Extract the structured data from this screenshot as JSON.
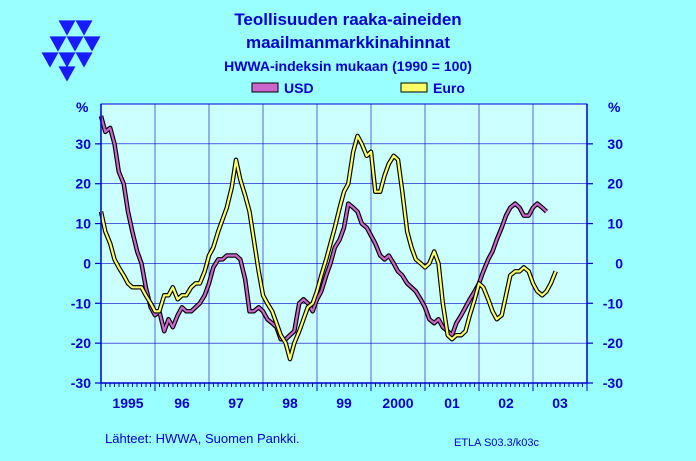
{
  "colors": {
    "background": "#99FFFF",
    "plot_background": "#CCFFFF",
    "text": "#0000CC",
    "axis": "#0000CC",
    "grid": "#0000CC",
    "usd_fill": "#CC66CC",
    "euro_fill": "#FFFF66",
    "series_outline": "#000000",
    "logo": "#1A1AFF"
  },
  "logo_icon": "etla-triangles-logo",
  "chart_data": {
    "type": "line",
    "title": "Teollisuuden  raaka-aineiden",
    "title_line2": "maailmanmarkkinahinnat",
    "subtitle": "HWWA-indeksin  mukaan  (1990 = 100)",
    "ylabel_left": "%",
    "ylabel_right": "%",
    "ylim": [
      -30,
      40
    ],
    "xlim": [
      1995.0,
      2004.0
    ],
    "grid": true,
    "legend_position": "top-center",
    "y_ticks": [
      30,
      20,
      10,
      0,
      -10,
      -20,
      -30
    ],
    "y_tick_labels": [
      "30",
      "20",
      "10",
      "0",
      "-10",
      "-20",
      "-30"
    ],
    "x_tick_labels": [
      {
        "label": "1995",
        "x": 1995.5
      },
      {
        "label": "96",
        "x": 1996.5
      },
      {
        "label": "97",
        "x": 1997.5
      },
      {
        "label": "98",
        "x": 1998.5
      },
      {
        "label": "99",
        "x": 1999.5
      },
      {
        "label": "2000",
        "x": 2000.5
      },
      {
        "label": "01",
        "x": 2001.5
      },
      {
        "label": "02",
        "x": 2002.5
      },
      {
        "label": "03",
        "x": 2003.5
      }
    ],
    "series": [
      {
        "name": "USD",
        "color": "#CC66CC",
        "points": [
          [
            1995.0,
            37
          ],
          [
            1995.08,
            33
          ],
          [
            1995.17,
            34
          ],
          [
            1995.25,
            30
          ],
          [
            1995.33,
            23
          ],
          [
            1995.42,
            20
          ],
          [
            1995.5,
            13
          ],
          [
            1995.58,
            8
          ],
          [
            1995.67,
            3
          ],
          [
            1995.75,
            0
          ],
          [
            1995.83,
            -6
          ],
          [
            1995.92,
            -11
          ],
          [
            1996.0,
            -13
          ],
          [
            1996.08,
            -12
          ],
          [
            1996.17,
            -17
          ],
          [
            1996.25,
            -14
          ],
          [
            1996.33,
            -16
          ],
          [
            1996.42,
            -13
          ],
          [
            1996.5,
            -11
          ],
          [
            1996.58,
            -12
          ],
          [
            1996.67,
            -12
          ],
          [
            1996.75,
            -11
          ],
          [
            1996.83,
            -10
          ],
          [
            1996.92,
            -8
          ],
          [
            1997.0,
            -5
          ],
          [
            1997.08,
            -1
          ],
          [
            1997.17,
            1
          ],
          [
            1997.25,
            1
          ],
          [
            1997.33,
            2
          ],
          [
            1997.42,
            2
          ],
          [
            1997.5,
            2
          ],
          [
            1997.58,
            1
          ],
          [
            1997.67,
            -4
          ],
          [
            1997.75,
            -12
          ],
          [
            1997.83,
            -12
          ],
          [
            1997.92,
            -11
          ],
          [
            1998.0,
            -12
          ],
          [
            1998.08,
            -14
          ],
          [
            1998.17,
            -15
          ],
          [
            1998.25,
            -16
          ],
          [
            1998.33,
            -19
          ],
          [
            1998.42,
            -19
          ],
          [
            1998.5,
            -18
          ],
          [
            1998.58,
            -17
          ],
          [
            1998.67,
            -10
          ],
          [
            1998.75,
            -9
          ],
          [
            1998.83,
            -10
          ],
          [
            1998.92,
            -12
          ],
          [
            1999.0,
            -9
          ],
          [
            1999.08,
            -7
          ],
          [
            1999.17,
            -3
          ],
          [
            1999.25,
            0
          ],
          [
            1999.33,
            4
          ],
          [
            1999.42,
            6
          ],
          [
            1999.5,
            9
          ],
          [
            1999.58,
            15
          ],
          [
            1999.67,
            14
          ],
          [
            1999.75,
            13
          ],
          [
            1999.83,
            10
          ],
          [
            1999.92,
            9
          ],
          [
            2000.0,
            7
          ],
          [
            2000.08,
            5
          ],
          [
            2000.17,
            2
          ],
          [
            2000.25,
            1
          ],
          [
            2000.33,
            2
          ],
          [
            2000.42,
            0
          ],
          [
            2000.5,
            -2
          ],
          [
            2000.58,
            -3
          ],
          [
            2000.67,
            -5
          ],
          [
            2000.75,
            -6
          ],
          [
            2000.83,
            -7
          ],
          [
            2000.92,
            -9
          ],
          [
            2001.0,
            -11
          ],
          [
            2001.08,
            -14
          ],
          [
            2001.17,
            -15
          ],
          [
            2001.25,
            -14
          ],
          [
            2001.33,
            -16
          ],
          [
            2001.42,
            -17
          ],
          [
            2001.5,
            -18
          ],
          [
            2001.58,
            -15
          ],
          [
            2001.67,
            -13
          ],
          [
            2001.75,
            -11
          ],
          [
            2001.83,
            -9
          ],
          [
            2001.92,
            -7
          ],
          [
            2002.0,
            -5
          ],
          [
            2002.08,
            -2
          ],
          [
            2002.17,
            1
          ],
          [
            2002.25,
            3
          ],
          [
            2002.33,
            6
          ],
          [
            2002.42,
            9
          ],
          [
            2002.5,
            12
          ],
          [
            2002.58,
            14
          ],
          [
            2002.67,
            15
          ],
          [
            2002.75,
            14
          ],
          [
            2002.83,
            12
          ],
          [
            2002.92,
            12
          ],
          [
            2003.0,
            14
          ],
          [
            2003.08,
            15
          ],
          [
            2003.17,
            14
          ],
          [
            2003.25,
            13
          ]
        ]
      },
      {
        "name": "Euro",
        "color": "#FFFF66",
        "points": [
          [
            1995.0,
            13
          ],
          [
            1995.08,
            8
          ],
          [
            1995.17,
            5
          ],
          [
            1995.25,
            1
          ],
          [
            1995.33,
            -1
          ],
          [
            1995.42,
            -3
          ],
          [
            1995.5,
            -5
          ],
          [
            1995.58,
            -6
          ],
          [
            1995.67,
            -6
          ],
          [
            1995.75,
            -6
          ],
          [
            1995.83,
            -8
          ],
          [
            1995.92,
            -10
          ],
          [
            1996.0,
            -12
          ],
          [
            1996.08,
            -12
          ],
          [
            1996.17,
            -8
          ],
          [
            1996.25,
            -8
          ],
          [
            1996.33,
            -6
          ],
          [
            1996.42,
            -9
          ],
          [
            1996.5,
            -8
          ],
          [
            1996.58,
            -8
          ],
          [
            1996.67,
            -6
          ],
          [
            1996.75,
            -5
          ],
          [
            1996.83,
            -5
          ],
          [
            1996.92,
            -2
          ],
          [
            1997.0,
            2
          ],
          [
            1997.08,
            4
          ],
          [
            1997.17,
            8
          ],
          [
            1997.25,
            11
          ],
          [
            1997.33,
            14
          ],
          [
            1997.42,
            19
          ],
          [
            1997.5,
            26
          ],
          [
            1997.58,
            21
          ],
          [
            1997.67,
            17
          ],
          [
            1997.75,
            13
          ],
          [
            1997.83,
            6
          ],
          [
            1997.92,
            -2
          ],
          [
            1998.0,
            -8
          ],
          [
            1998.08,
            -10
          ],
          [
            1998.17,
            -12
          ],
          [
            1998.25,
            -15
          ],
          [
            1998.33,
            -18
          ],
          [
            1998.42,
            -20
          ],
          [
            1998.5,
            -24
          ],
          [
            1998.58,
            -20
          ],
          [
            1998.67,
            -17
          ],
          [
            1998.75,
            -14
          ],
          [
            1998.83,
            -11
          ],
          [
            1998.92,
            -10
          ],
          [
            1999.0,
            -7
          ],
          [
            1999.08,
            -3
          ],
          [
            1999.17,
            1
          ],
          [
            1999.25,
            5
          ],
          [
            1999.33,
            9
          ],
          [
            1999.42,
            14
          ],
          [
            1999.5,
            18
          ],
          [
            1999.58,
            20
          ],
          [
            1999.67,
            28
          ],
          [
            1999.75,
            32
          ],
          [
            1999.83,
            30
          ],
          [
            1999.92,
            27
          ],
          [
            2000.0,
            28
          ],
          [
            2000.08,
            18
          ],
          [
            2000.17,
            18
          ],
          [
            2000.25,
            22
          ],
          [
            2000.33,
            25
          ],
          [
            2000.42,
            27
          ],
          [
            2000.5,
            26
          ],
          [
            2000.58,
            18
          ],
          [
            2000.67,
            8
          ],
          [
            2000.75,
            4
          ],
          [
            2000.83,
            1
          ],
          [
            2000.92,
            0
          ],
          [
            2001.0,
            -1
          ],
          [
            2001.08,
            0
          ],
          [
            2001.17,
            3
          ],
          [
            2001.25,
            0
          ],
          [
            2001.33,
            -10
          ],
          [
            2001.42,
            -18
          ],
          [
            2001.5,
            -19
          ],
          [
            2001.58,
            -18
          ],
          [
            2001.67,
            -18
          ],
          [
            2001.75,
            -17
          ],
          [
            2001.83,
            -13
          ],
          [
            2001.92,
            -9
          ],
          [
            2002.0,
            -5
          ],
          [
            2002.08,
            -6
          ],
          [
            2002.17,
            -9
          ],
          [
            2002.25,
            -12
          ],
          [
            2002.33,
            -14
          ],
          [
            2002.42,
            -13
          ],
          [
            2002.5,
            -8
          ],
          [
            2002.58,
            -3
          ],
          [
            2002.67,
            -2
          ],
          [
            2002.75,
            -2
          ],
          [
            2002.83,
            -1
          ],
          [
            2002.92,
            -2
          ],
          [
            2003.0,
            -5
          ],
          [
            2003.08,
            -7
          ],
          [
            2003.17,
            -8
          ],
          [
            2003.25,
            -7
          ],
          [
            2003.33,
            -5
          ],
          [
            2003.42,
            -2
          ]
        ]
      }
    ]
  },
  "footer": {
    "sources": "Lähteet:  HWWA, Suomen Pankki.",
    "code": "ETLA S03.3/k03c"
  }
}
